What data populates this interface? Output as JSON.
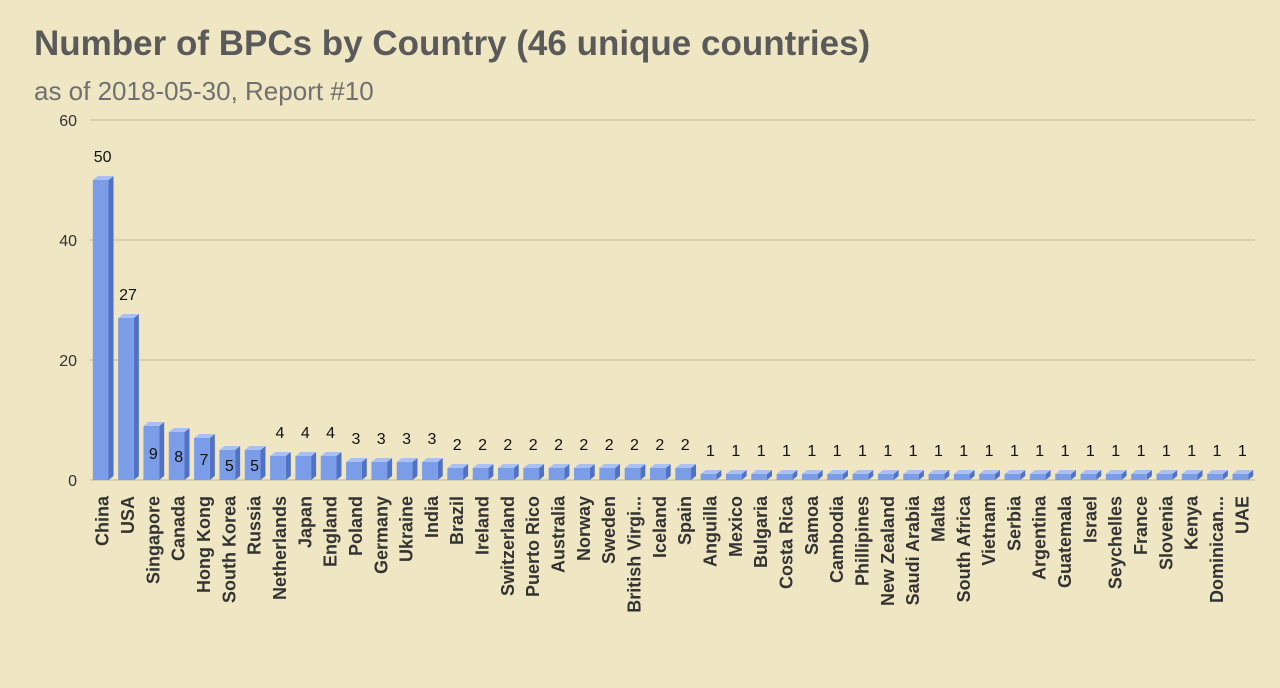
{
  "title": "Number of BPCs by Country (46 unique countries)",
  "subtitle": "as of 2018-05-30, Report #10",
  "colors": {
    "background": "#efe6c3",
    "bar_front": "#7b9de8",
    "bar_top": "#a9c0f2",
    "bar_side": "#4f72c6",
    "gridline": "#bdb596",
    "axis_text": "#333333",
    "label_text": "#111111"
  },
  "chart_data": {
    "type": "bar",
    "title": "Number of BPCs by Country (46 unique countries)",
    "subtitle": "as of 2018-05-30, Report #10",
    "categories": [
      "China",
      "USA",
      "Singapore",
      "Canada",
      "Hong Kong",
      "South Korea",
      "Russia",
      "Netherlands",
      "Japan",
      "England",
      "Poland",
      "Germany",
      "Ukraine",
      "India",
      "Brazil",
      "Ireland",
      "Switzerland",
      "Puerto Rico",
      "Australia",
      "Norway",
      "Sweden",
      "British Virgi...",
      "Iceland",
      "Spain",
      "Anguilla",
      "Mexico",
      "Bulgaria",
      "Costa Rica",
      "Samoa",
      "Cambodia",
      "Phillipines",
      "New Zealand",
      "Saudi Arabia",
      "Malta",
      "South Africa",
      "Vietnam",
      "Serbia",
      "Argentina",
      "Guatemala",
      "Israel",
      "Seychelles",
      "France",
      "Slovenia",
      "Kenya",
      "Dominican...",
      "UAE"
    ],
    "values": [
      50,
      27,
      9,
      8,
      7,
      5,
      5,
      4,
      4,
      4,
      3,
      3,
      3,
      3,
      2,
      2,
      2,
      2,
      2,
      2,
      2,
      2,
      2,
      2,
      1,
      1,
      1,
      1,
      1,
      1,
      1,
      1,
      1,
      1,
      1,
      1,
      1,
      1,
      1,
      1,
      1,
      1,
      1,
      1,
      1,
      1
    ],
    "xlabel": "",
    "ylabel": "",
    "ylim": [
      0,
      60
    ],
    "yticks": [
      0,
      20,
      40,
      60
    ],
    "grid": true,
    "legend": "none",
    "style": "3d-bar"
  }
}
